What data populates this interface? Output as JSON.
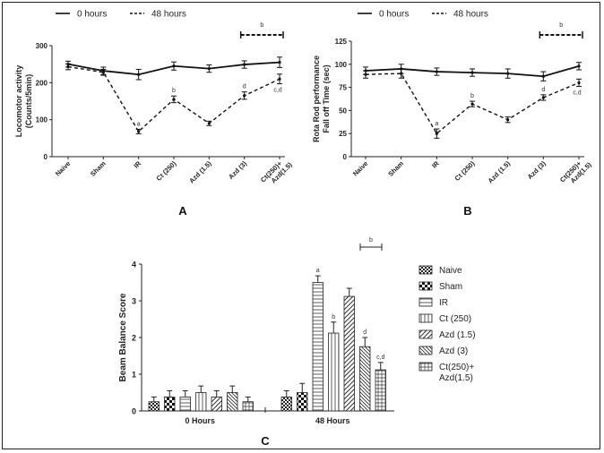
{
  "chart_data": [
    {
      "id": "A",
      "type": "line",
      "panel_label": "A",
      "ylabel_lines": [
        "Locomotor activity",
        "(Counts/5min)"
      ],
      "ylim": [
        0,
        300
      ],
      "yticks": [
        "0",
        "100",
        "200",
        "300"
      ],
      "categories": [
        "Naive",
        "Sham",
        "IR",
        "Ct (250)",
        "Azd (1.5)",
        "Azd (3)",
        "Ct(250)+\nAzd(1.5)"
      ],
      "series": [
        {
          "name": "0 hours",
          "style": "solid",
          "values": [
            250,
            232,
            222,
            245,
            238,
            249,
            255
          ],
          "errors": [
            8,
            10,
            14,
            11,
            10,
            10,
            14
          ]
        },
        {
          "name": "48 hours",
          "style": "dashed",
          "values": [
            243,
            228,
            68,
            155,
            90,
            165,
            210
          ],
          "errors": [
            8,
            8,
            6,
            9,
            6,
            10,
            13
          ]
        }
      ],
      "point_labels": [
        {
          "index": 2,
          "text": "a"
        },
        {
          "index": 3,
          "text": "b"
        },
        {
          "index": 5,
          "text": "d"
        },
        {
          "index": 6,
          "text": "c,d"
        }
      ],
      "bracket_label": "b"
    },
    {
      "id": "B",
      "type": "line",
      "panel_label": "B",
      "ylabel_lines": [
        "Rota Rod performance",
        "Fall off Time (sec)"
      ],
      "ylim": [
        0,
        125
      ],
      "yticks": [
        "0",
        "25",
        "50",
        "75",
        "100",
        "125"
      ],
      "categories": [
        "Naive",
        "Sham",
        "IR",
        "Ct (250)",
        "Azd (1.5)",
        "Azd (3)",
        "Ct(250)+\nAzd(1.5)"
      ],
      "series": [
        {
          "name": "0 hours",
          "style": "solid",
          "values": [
            93,
            95,
            92,
            91,
            90,
            87,
            98
          ],
          "errors": [
            4,
            5,
            4,
            4,
            5,
            5,
            4
          ]
        },
        {
          "name": "48 hours",
          "style": "dashed",
          "values": [
            89,
            90,
            25,
            57,
            40,
            64,
            80
          ],
          "errors": [
            4,
            5,
            5,
            3,
            3,
            3,
            4
          ]
        }
      ],
      "point_labels": [
        {
          "index": 2,
          "text": "a"
        },
        {
          "index": 3,
          "text": "b"
        },
        {
          "index": 5,
          "text": "d"
        },
        {
          "index": 6,
          "text": "c,d"
        }
      ],
      "bracket_label": "b"
    },
    {
      "id": "C",
      "type": "bar",
      "panel_label": "C",
      "ylabel": "Beam Balance Score",
      "ylim": [
        0,
        4
      ],
      "yticks": [
        "0",
        "1",
        "2",
        "3",
        "4"
      ],
      "groups": [
        "0  Hours",
        "48 Hours"
      ],
      "series": [
        {
          "name": "Naive",
          "pattern": "checker",
          "values": [
            0.25,
            0.38
          ],
          "errors": [
            0.13,
            0.17
          ]
        },
        {
          "name": "Sham",
          "pattern": "bigchecker",
          "values": [
            0.38,
            0.5
          ],
          "errors": [
            0.17,
            0.25
          ]
        },
        {
          "name": "IR",
          "pattern": "hlines",
          "values": [
            0.38,
            3.5
          ],
          "errors": [
            0.17,
            0.18
          ]
        },
        {
          "name": "Ct (250)",
          "pattern": "vlines",
          "values": [
            0.5,
            2.12
          ],
          "errors": [
            0.18,
            0.3
          ]
        },
        {
          "name": "Azd (1.5)",
          "pattern": "diag",
          "values": [
            0.38,
            3.12
          ],
          "errors": [
            0.17,
            0.22
          ]
        },
        {
          "name": "Azd (3)",
          "pattern": "diag2",
          "values": [
            0.5,
            1.75
          ],
          "errors": [
            0.18,
            0.25
          ]
        },
        {
          "name": "Ct(250)+\nAzd(1.5)",
          "pattern": "grid",
          "values": [
            0.25,
            1.12
          ],
          "errors": [
            0.13,
            0.2
          ]
        }
      ],
      "bar_labels": [
        {
          "series": 2,
          "group": 1,
          "text": "a"
        },
        {
          "series": 3,
          "group": 1,
          "text": "b"
        },
        {
          "series": 5,
          "group": 1,
          "text": "d"
        },
        {
          "series": 6,
          "group": 1,
          "text": "c,d"
        }
      ],
      "bracket_label": "b"
    }
  ]
}
